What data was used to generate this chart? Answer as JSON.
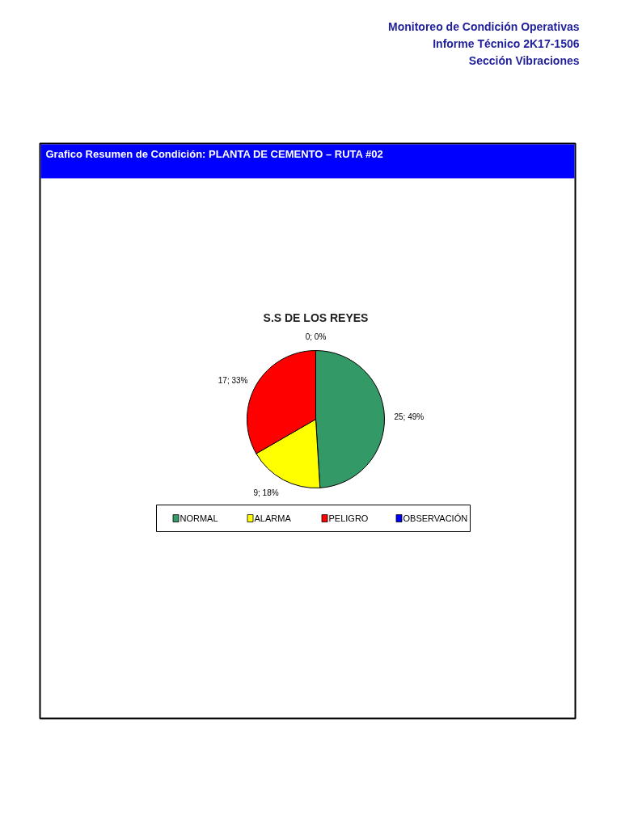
{
  "chart_data": {
    "type": "pie",
    "title": "Grafico Resumen de Condición:  PLANTA DE CEMENTO – RUTA #02",
    "subtitle": "S.S DE LOS REYES",
    "annotations": [
      "Monitoreo de Condición Operativas",
      "Informe Técnico 2K17-1506",
      "Sección Vibraciones"
    ],
    "categories": [
      "NORMAL",
      "ALARMA",
      "PELIGRO",
      "OBSERVACIÓN"
    ],
    "values": [
      25,
      9,
      17,
      0
    ],
    "colors": [
      "#339966",
      "#ffff00",
      "#ff0000",
      "#0000ff"
    ],
    "value_labels": [
      "25; 49%",
      "9; 18%",
      "17; 33%",
      "0; 0%"
    ],
    "legend": "bottom"
  }
}
